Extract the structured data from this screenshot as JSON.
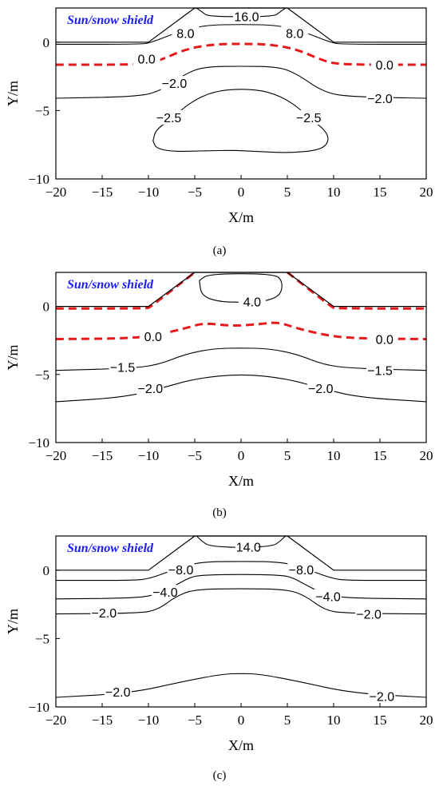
{
  "chart_data": [
    {
      "type": "contour",
      "panel_label": "(a)",
      "annotation": "Sun/snow shield",
      "xlabel": "X/m",
      "ylabel": "Y/m",
      "xlim": [
        -20,
        20
      ],
      "ylim": [
        -10,
        2.5
      ],
      "xticks": [
        -20,
        -15,
        -10,
        -5,
        0,
        5,
        10,
        15,
        20
      ],
      "yticks": [
        0,
        -5,
        -10
      ],
      "embankment": [
        [
          -20,
          0
        ],
        [
          -10,
          0
        ],
        [
          -5,
          2.5
        ],
        [
          5,
          2.5
        ],
        [
          10,
          0
        ],
        [
          20,
          0
        ]
      ],
      "contours": [
        {
          "label": "16.0",
          "style": "solid",
          "points": [
            [
              -4.8,
              2.5
            ],
            [
              -4.2,
              2.2
            ],
            [
              -3.6,
              1.9
            ],
            [
              0,
              1.85
            ],
            [
              3.6,
              1.9
            ],
            [
              4.2,
              2.2
            ],
            [
              4.8,
              2.5
            ]
          ],
          "labels": [
            {
              "text": "16.0",
              "x": 0.6,
              "y": 1.9
            }
          ]
        },
        {
          "label": "8.0",
          "style": "solid",
          "points": [
            [
              -20,
              -0.15
            ],
            [
              -11,
              -0.15
            ],
            [
              -9.8,
              -0.05
            ],
            [
              -7,
              0.7
            ],
            [
              -4,
              1.25
            ],
            [
              0,
              1.3
            ],
            [
              4,
              1.25
            ],
            [
              7,
              0.7
            ],
            [
              9.8,
              -0.05
            ],
            [
              11,
              -0.15
            ],
            [
              20,
              -0.15
            ]
          ],
          "labels": [
            {
              "text": "8.0",
              "x": -6,
              "y": 0.65
            },
            {
              "text": "8.0",
              "x": 5.8,
              "y": 0.65
            }
          ]
        },
        {
          "label": "0.0",
          "style": "dashed",
          "points": [
            [
              -20,
              -1.65
            ],
            [
              -11,
              -1.65
            ],
            [
              -9,
              -1.4
            ],
            [
              -6,
              -0.5
            ],
            [
              -3,
              -0.15
            ],
            [
              0,
              -0.12
            ],
            [
              3,
              -0.15
            ],
            [
              6,
              -0.5
            ],
            [
              9,
              -1.4
            ],
            [
              11,
              -1.65
            ],
            [
              20,
              -1.65
            ]
          ],
          "labels": [
            {
              "text": "0.0",
              "x": -10.2,
              "y": -1.2
            },
            {
              "text": "0.0",
              "x": 15.5,
              "y": -1.65
            }
          ]
        },
        {
          "label": "-2.0",
          "style": "solid",
          "points": [
            [
              -20,
              -4.1
            ],
            [
              -12,
              -4.0
            ],
            [
              -9,
              -3.7
            ],
            [
              -6,
              -2.3
            ],
            [
              -4,
              -1.8
            ],
            [
              0,
              -1.75
            ],
            [
              4,
              -1.8
            ],
            [
              6,
              -2.3
            ],
            [
              9,
              -3.7
            ],
            [
              12,
              -4.0
            ],
            [
              20,
              -4.1
            ]
          ],
          "labels": [
            {
              "text": "-2.0",
              "x": -7.2,
              "y": -3.0
            },
            {
              "text": "-2.0",
              "x": 15,
              "y": -4.1
            }
          ]
        },
        {
          "label": "-2.5",
          "style": "solid",
          "closed": true,
          "points": [
            [
              -9.5,
              -7.2
            ],
            [
              -9.2,
              -6.4
            ],
            [
              -7.5,
              -5.6
            ],
            [
              -5.5,
              -4.4
            ],
            [
              -3,
              -3.6
            ],
            [
              0,
              -3.4
            ],
            [
              3,
              -3.6
            ],
            [
              5.5,
              -4.4
            ],
            [
              7.5,
              -5.6
            ],
            [
              9.2,
              -6.5
            ],
            [
              9.5,
              -7.3
            ],
            [
              8.5,
              -7.9
            ],
            [
              5,
              -8.1
            ],
            [
              2,
              -8.0
            ],
            [
              -1,
              -7.9
            ],
            [
              -4,
              -7.95
            ],
            [
              -7.5,
              -8.0
            ],
            [
              -9.2,
              -7.75
            ]
          ],
          "labels": [
            {
              "text": "-2.5",
              "x": -7.8,
              "y": -5.5
            },
            {
              "text": "-2.5",
              "x": 7.3,
              "y": -5.5
            }
          ]
        }
      ]
    },
    {
      "type": "contour",
      "panel_label": "(b)",
      "annotation": "Sun/snow shield",
      "xlabel": "X/m",
      "ylabel": "Y/m",
      "xlim": [
        -20,
        20
      ],
      "ylim": [
        -10,
        2.5
      ],
      "xticks": [
        -20,
        -15,
        -10,
        -5,
        0,
        5,
        10,
        15,
        20
      ],
      "yticks": [
        0,
        -5,
        -10
      ],
      "embankment": [
        [
          -20,
          0
        ],
        [
          -10,
          0
        ],
        [
          -5,
          2.5
        ],
        [
          5,
          2.5
        ],
        [
          10,
          0
        ],
        [
          20,
          0
        ]
      ],
      "contours": [
        {
          "label": "0.0",
          "style": "dashed",
          "points": [
            [
              -20,
              -0.15
            ],
            [
              -10.2,
              -0.15
            ],
            [
              -9.8,
              -0.05
            ],
            [
              -5,
              2.5
            ]
          ],
          "labels": []
        },
        {
          "label": "0.0",
          "style": "dashed",
          "points": [
            [
              5,
              2.5
            ],
            [
              9.8,
              -0.05
            ],
            [
              10.2,
              -0.15
            ],
            [
              20,
              -0.15
            ]
          ],
          "labels": []
        },
        {
          "label": "4.0",
          "style": "solid",
          "closed": true,
          "points": [
            [
              -4.5,
              1.9
            ],
            [
              -3.5,
              2.4
            ],
            [
              3.5,
              2.4
            ],
            [
              4.5,
              1.9
            ],
            [
              4.3,
              0.8
            ],
            [
              2.5,
              0.35
            ],
            [
              0,
              0.3
            ],
            [
              -2.5,
              0.35
            ],
            [
              -4.3,
              0.8
            ]
          ],
          "labels": [
            {
              "text": "4.0",
              "x": 1.2,
              "y": 0.35
            }
          ]
        },
        {
          "label": "0.0",
          "style": "dashed",
          "points": [
            [
              -20,
              -2.4
            ],
            [
              -12,
              -2.35
            ],
            [
              -9,
              -2.1
            ],
            [
              -6,
              -1.6
            ],
            [
              -4,
              -1.2
            ],
            [
              -1,
              -1.45
            ],
            [
              2,
              -1.3
            ],
            [
              4,
              -1.15
            ],
            [
              6,
              -1.6
            ],
            [
              9,
              -2.1
            ],
            [
              12,
              -2.35
            ],
            [
              20,
              -2.4
            ]
          ],
          "labels": [
            {
              "text": "0.0",
              "x": -9.5,
              "y": -2.2
            },
            {
              "text": "0.0",
              "x": 15.5,
              "y": -2.4
            }
          ]
        },
        {
          "label": "-1.5",
          "style": "solid",
          "points": [
            [
              -20,
              -4.7
            ],
            [
              -12,
              -4.55
            ],
            [
              -9,
              -4.3
            ],
            [
              -6,
              -3.5
            ],
            [
              -3,
              -3.1
            ],
            [
              0,
              -3.05
            ],
            [
              3,
              -3.1
            ],
            [
              6,
              -3.5
            ],
            [
              9,
              -4.3
            ],
            [
              12,
              -4.55
            ],
            [
              20,
              -4.7
            ]
          ],
          "labels": [
            {
              "text": "-1.5",
              "x": -12.8,
              "y": -4.45
            },
            {
              "text": "-1.5",
              "x": 15,
              "y": -4.7
            }
          ]
        },
        {
          "label": "-2.0",
          "style": "solid",
          "points": [
            [
              -20,
              -7.0
            ],
            [
              -13,
              -6.7
            ],
            [
              -9,
              -6.1
            ],
            [
              -5,
              -5.3
            ],
            [
              0,
              -4.95
            ],
            [
              5,
              -5.3
            ],
            [
              9,
              -6.1
            ],
            [
              13,
              -6.7
            ],
            [
              20,
              -7.0
            ]
          ],
          "labels": [
            {
              "text": "-2.0",
              "x": -9.8,
              "y": -6.0
            },
            {
              "text": "-2.0",
              "x": 8.6,
              "y": -6.0
            }
          ]
        }
      ]
    },
    {
      "type": "contour",
      "panel_label": "(c)",
      "annotation": "Sun/snow shield",
      "xlabel": "X/m",
      "ylabel": "Y/m",
      "xlim": [
        -20,
        20
      ],
      "ylim": [
        -10,
        2.5
      ],
      "xticks": [
        -20,
        -15,
        -10,
        -5,
        0,
        5,
        10,
        15,
        20
      ],
      "yticks": [
        0,
        -5,
        -10
      ],
      "embankment": [
        [
          -20,
          0
        ],
        [
          -10,
          0
        ],
        [
          -5,
          2.5
        ],
        [
          5,
          2.5
        ],
        [
          10,
          0
        ],
        [
          20,
          0
        ]
      ],
      "contours": [
        {
          "label": "-14.0",
          "style": "solid",
          "points": [
            [
              -4.8,
              2.5
            ],
            [
              -4.2,
              2.1
            ],
            [
              -3.4,
              1.75
            ],
            [
              0,
              1.65
            ],
            [
              3.4,
              1.75
            ],
            [
              4.2,
              2.1
            ],
            [
              4.8,
              2.5
            ]
          ],
          "labels": [
            {
              "text": "-14.0",
              "x": 0.4,
              "y": 1.7
            }
          ]
        },
        {
          "label": "-8.0",
          "style": "solid",
          "points": [
            [
              -20,
              -0.75
            ],
            [
              -11.5,
              -0.75
            ],
            [
              -9.8,
              -0.6
            ],
            [
              -7,
              0.1
            ],
            [
              -4.5,
              0.6
            ],
            [
              0,
              0.65
            ],
            [
              4.5,
              0.6
            ],
            [
              7,
              0.1
            ],
            [
              9.8,
              -0.6
            ],
            [
              11.5,
              -0.75
            ],
            [
              20,
              -0.75
            ]
          ],
          "labels": [
            {
              "text": "-8.0",
              "x": -6.5,
              "y": 0.05
            },
            {
              "text": "-8.0",
              "x": 6.5,
              "y": 0.05
            }
          ]
        },
        {
          "label": "-4.0",
          "style": "solid",
          "points": [
            [
              -20,
              -2.1
            ],
            [
              -12,
              -2.05
            ],
            [
              -9.3,
              -1.85
            ],
            [
              -7.3,
              -1.2
            ],
            [
              -5.5,
              -0.5
            ],
            [
              -4,
              -0.35
            ],
            [
              0,
              -0.3
            ],
            [
              4,
              -0.35
            ],
            [
              5.5,
              -0.5
            ],
            [
              7.3,
              -1.2
            ],
            [
              9.3,
              -1.85
            ],
            [
              12,
              -2.05
            ],
            [
              20,
              -2.1
            ]
          ],
          "labels": [
            {
              "text": "-4.0",
              "x": -8.2,
              "y": -1.6
            },
            {
              "text": "-4.0",
              "x": 9.4,
              "y": -1.9
            }
          ]
        },
        {
          "label": "-2.0",
          "style": "solid",
          "points": [
            [
              -20,
              -3.2
            ],
            [
              -11,
              -3.15
            ],
            [
              -9,
              -2.9
            ],
            [
              -7,
              -1.9
            ],
            [
              -5,
              -1.4
            ],
            [
              0,
              -1.35
            ],
            [
              5,
              -1.4
            ],
            [
              7,
              -1.9
            ],
            [
              9,
              -2.9
            ],
            [
              11,
              -3.15
            ],
            [
              20,
              -3.2
            ]
          ],
          "labels": [
            {
              "text": "-2.0",
              "x": -14.8,
              "y": -3.1
            },
            {
              "text": "-2.0",
              "x": 13.8,
              "y": -3.2
            }
          ]
        },
        {
          "label": "-2.0",
          "style": "solid",
          "points": [
            [
              -20,
              -9.3
            ],
            [
              -12,
              -9.0
            ],
            [
              -6,
              -8.1
            ],
            [
              -2,
              -7.6
            ],
            [
              0,
              -7.55
            ],
            [
              2,
              -7.6
            ],
            [
              6,
              -8.1
            ],
            [
              12,
              -9.0
            ],
            [
              20,
              -9.3
            ]
          ],
          "labels": [
            {
              "text": "-2.0",
              "x": -13.3,
              "y": -8.9
            },
            {
              "text": "-2.0",
              "x": 15.2,
              "y": -9.2
            }
          ]
        }
      ]
    }
  ]
}
